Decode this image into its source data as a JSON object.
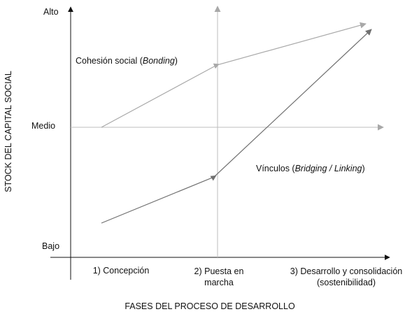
{
  "y_axis": {
    "title": "STOCK DEL CAPITAL SOCIAL",
    "levels": [
      "Alto",
      "Medio",
      "Bajo"
    ]
  },
  "x_axis": {
    "title": "FASES DEL PROCESO DE DESARROLLO",
    "phases": [
      {
        "line1": "1) Concepción",
        "line2": ""
      },
      {
        "line1": "2) Puesta en",
        "line2": "marcha"
      },
      {
        "line1": "3) Desarrollo y consolidación",
        "line2": "(sostenibilidad)"
      }
    ]
  },
  "series": [
    {
      "prefix": "Cohesión social (",
      "italic": "Bonding",
      "suffix": ")",
      "color": "#a8a8a8"
    },
    {
      "prefix": "Vínculos (",
      "italic": "Bridging / Linking",
      "suffix": ")",
      "color": "#707070"
    }
  ],
  "colors": {
    "axis": "#111111",
    "guide": "#bdbdbd"
  }
}
